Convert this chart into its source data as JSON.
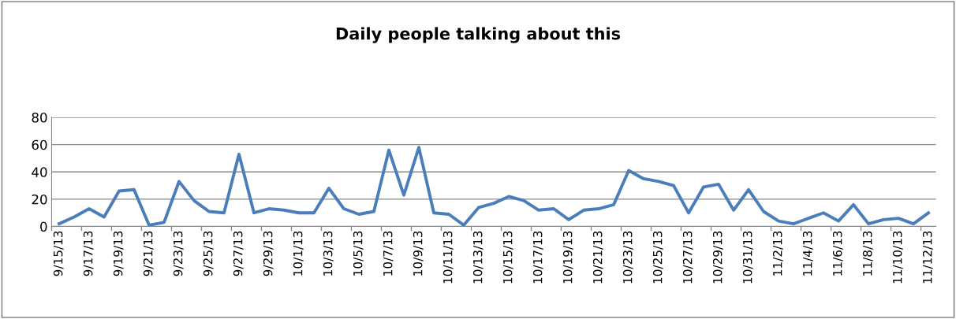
{
  "chart_data": {
    "type": "line",
    "title": "Daily people talking about this",
    "categories": [
      "9/15/13",
      null,
      "9/17/13",
      null,
      "9/19/13",
      null,
      "9/21/13",
      null,
      "9/23/13",
      null,
      "9/25/13",
      null,
      "9/27/13",
      null,
      "9/29/13",
      null,
      "10/1/13",
      null,
      "10/3/13",
      null,
      "10/5/13",
      null,
      "10/7/13",
      null,
      "10/9/13",
      null,
      "10/11/13",
      null,
      "10/13/13",
      null,
      "10/15/13",
      null,
      "10/17/13",
      null,
      "10/19/13",
      null,
      "10/21/13",
      null,
      "10/23/13",
      null,
      "10/25/13",
      null,
      "10/27/13",
      null,
      "10/29/13",
      null,
      "10/31/13",
      null,
      "11/2/13",
      null,
      "11/4/13",
      null,
      "11/6/13",
      null,
      "11/8/13",
      null,
      "11/10/13",
      null,
      "11/12/13"
    ],
    "series": [
      {
        "color": "#4a7ebb",
        "values": [
          2,
          7,
          13,
          7,
          26,
          27,
          1,
          3,
          33,
          19,
          11,
          10,
          53,
          10,
          13,
          12,
          10,
          10,
          28,
          13,
          9,
          11,
          56,
          23,
          58,
          10,
          9,
          1,
          14,
          17,
          22,
          19,
          12,
          13,
          5,
          12,
          13,
          16,
          41,
          35,
          33,
          30,
          10,
          29,
          31,
          12,
          27,
          11,
          4,
          2,
          6,
          10,
          4,
          16,
          2,
          5,
          6,
          2,
          10
        ]
      }
    ],
    "ylim": [
      0,
      80
    ],
    "yticks": [
      0,
      20,
      40,
      60,
      80
    ],
    "grid": "y",
    "marker": "none",
    "line_style": "solid"
  }
}
